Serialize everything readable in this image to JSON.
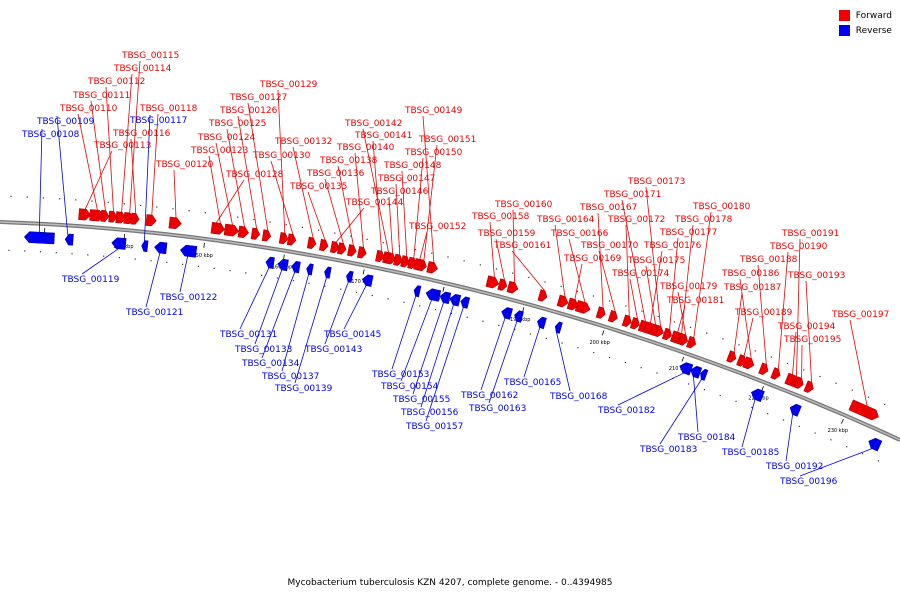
{
  "legend": {
    "forward_label": "Forward",
    "reverse_label": "Reverse",
    "forward_color": "#ee0000",
    "reverse_color": "#0000ee"
  },
  "caption": "Mycobacterium tuberculosis KZN 4207, complete genome. - 0..4394985",
  "axis": {
    "ticks": [
      "130 kbp",
      "140 kbp",
      "150 kbp",
      "160 kbp",
      "170 kbp",
      "180 kbp",
      "190 kbp",
      "200 kbp",
      "210 kbp",
      "220 kbp",
      "230 kbp"
    ]
  },
  "genes": [
    {
      "name": "TBSG_00115",
      "strand": "forward"
    },
    {
      "name": "TBSG_00114",
      "strand": "forward"
    },
    {
      "name": "TBSG_00112",
      "strand": "forward"
    },
    {
      "name": "TBSG_00111",
      "strand": "forward"
    },
    {
      "name": "TBSG_00110",
      "strand": "forward"
    },
    {
      "name": "TBSG_00118",
      "strand": "forward"
    },
    {
      "name": "TBSG_00109",
      "strand": "reverse"
    },
    {
      "name": "TBSG_00117",
      "strand": "reverse"
    },
    {
      "name": "TBSG_00108",
      "strand": "reverse"
    },
    {
      "name": "TBSG_00116",
      "strand": "forward"
    },
    {
      "name": "TBSG_00113",
      "strand": "forward"
    },
    {
      "name": "TBSG_00120",
      "strand": "forward"
    },
    {
      "name": "TBSG_00129",
      "strand": "forward"
    },
    {
      "name": "TBSG_00127",
      "strand": "forward"
    },
    {
      "name": "TBSG_00126",
      "strand": "forward"
    },
    {
      "name": "TBSG_00125",
      "strand": "forward"
    },
    {
      "name": "TBSG_00124",
      "strand": "forward"
    },
    {
      "name": "TBSG_00123",
      "strand": "forward"
    },
    {
      "name": "TBSG_00132",
      "strand": "forward"
    },
    {
      "name": "TBSG_00130",
      "strand": "forward"
    },
    {
      "name": "TBSG_00128",
      "strand": "forward"
    },
    {
      "name": "TBSG_00142",
      "strand": "forward"
    },
    {
      "name": "TBSG_00141",
      "strand": "forward"
    },
    {
      "name": "TBSG_00140",
      "strand": "forward"
    },
    {
      "name": "TBSG_00138",
      "strand": "forward"
    },
    {
      "name": "TBSG_00136",
      "strand": "forward"
    },
    {
      "name": "TBSG_00135",
      "strand": "forward"
    },
    {
      "name": "TBSG_00144",
      "strand": "forward"
    },
    {
      "name": "TBSG_00149",
      "strand": "forward"
    },
    {
      "name": "TBSG_00151",
      "strand": "forward"
    },
    {
      "name": "TBSG_00150",
      "strand": "forward"
    },
    {
      "name": "TBSG_00148",
      "strand": "forward"
    },
    {
      "name": "TBSG_00147",
      "strand": "forward"
    },
    {
      "name": "TBSG_00146",
      "strand": "forward"
    },
    {
      "name": "TBSG_00152",
      "strand": "forward"
    },
    {
      "name": "TBSG_00160",
      "strand": "forward"
    },
    {
      "name": "TBSG_00158",
      "strand": "forward"
    },
    {
      "name": "TBSG_00159",
      "strand": "forward"
    },
    {
      "name": "TBSG_00161",
      "strand": "forward"
    },
    {
      "name": "TBSG_00173",
      "strand": "forward"
    },
    {
      "name": "TBSG_00171",
      "strand": "forward"
    },
    {
      "name": "TBSG_00167",
      "strand": "forward"
    },
    {
      "name": "TBSG_00164",
      "strand": "forward"
    },
    {
      "name": "TBSG_00172",
      "strand": "forward"
    },
    {
      "name": "TBSG_00166",
      "strand": "forward"
    },
    {
      "name": "TBSG_00170",
      "strand": "forward"
    },
    {
      "name": "TBSG_00169",
      "strand": "forward"
    },
    {
      "name": "TBSG_00175",
      "strand": "forward"
    },
    {
      "name": "TBSG_00174",
      "strand": "forward"
    },
    {
      "name": "TBSG_00180",
      "strand": "forward"
    },
    {
      "name": "TBSG_00178",
      "strand": "forward"
    },
    {
      "name": "TBSG_00177",
      "strand": "forward"
    },
    {
      "name": "TBSG_00176",
      "strand": "forward"
    },
    {
      "name": "TBSG_00179",
      "strand": "forward"
    },
    {
      "name": "TBSG_00181",
      "strand": "forward"
    },
    {
      "name": "TBSG_00191",
      "strand": "forward"
    },
    {
      "name": "TBSG_00190",
      "strand": "forward"
    },
    {
      "name": "TBSG_00188",
      "strand": "forward"
    },
    {
      "name": "TBSG_00186",
      "strand": "forward"
    },
    {
      "name": "TBSG_00193",
      "strand": "forward"
    },
    {
      "name": "TBSG_00187",
      "strand": "forward"
    },
    {
      "name": "TBSG_00189",
      "strand": "forward"
    },
    {
      "name": "TBSG_00197",
      "strand": "forward"
    },
    {
      "name": "TBSG_00194",
      "strand": "forward"
    },
    {
      "name": "TBSG_00195",
      "strand": "forward"
    },
    {
      "name": "TBSG_00119",
      "strand": "reverse"
    },
    {
      "name": "TBSG_00122",
      "strand": "reverse"
    },
    {
      "name": "TBSG_00121",
      "strand": "reverse"
    },
    {
      "name": "TBSG_00131",
      "strand": "reverse"
    },
    {
      "name": "TBSG_00133",
      "strand": "reverse"
    },
    {
      "name": "TBSG_00134",
      "strand": "reverse"
    },
    {
      "name": "TBSG_00137",
      "strand": "reverse"
    },
    {
      "name": "TBSG_00139",
      "strand": "reverse"
    },
    {
      "name": "TBSG_00145",
      "strand": "reverse"
    },
    {
      "name": "TBSG_00143",
      "strand": "reverse"
    },
    {
      "name": "TBSG_00153",
      "strand": "reverse"
    },
    {
      "name": "TBSG_00154",
      "strand": "reverse"
    },
    {
      "name": "TBSG_00155",
      "strand": "reverse"
    },
    {
      "name": "TBSG_00156",
      "strand": "reverse"
    },
    {
      "name": "TBSG_00157",
      "strand": "reverse"
    },
    {
      "name": "TBSG_00165",
      "strand": "reverse"
    },
    {
      "name": "TBSG_00162",
      "strand": "reverse"
    },
    {
      "name": "TBSG_00163",
      "strand": "reverse"
    },
    {
      "name": "TBSG_00168",
      "strand": "reverse"
    },
    {
      "name": "TBSG_00182",
      "strand": "reverse"
    },
    {
      "name": "TBSG_00184",
      "strand": "reverse"
    },
    {
      "name": "TBSG_00183",
      "strand": "reverse"
    },
    {
      "name": "TBSG_00185",
      "strand": "reverse"
    },
    {
      "name": "TBSG_00192",
      "strand": "reverse"
    },
    {
      "name": "TBSG_00196",
      "strand": "reverse"
    }
  ]
}
